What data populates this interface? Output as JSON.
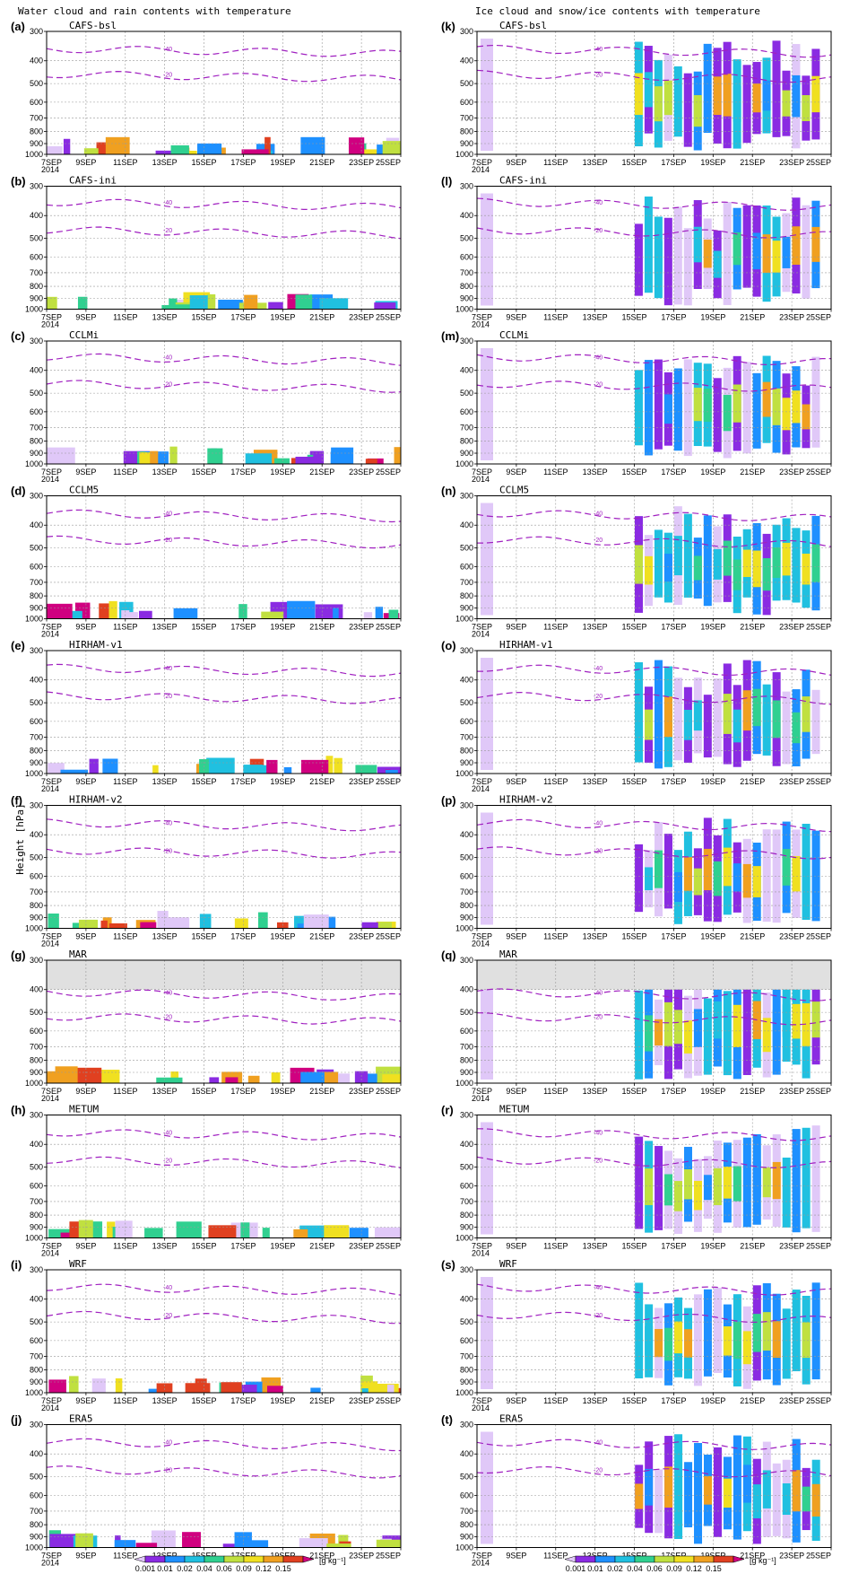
{
  "figure": {
    "left_title": "Water cloud and rain contents with temperature",
    "right_title": "Ice cloud and snow/ice contents with temperature",
    "ylabel": "Height [hPa]",
    "colorbar_unit": "[g kg⁻¹]"
  },
  "chart_data": {
    "type": "heatmap",
    "x_ticks": [
      "7SEP\n2014",
      "9SEP",
      "11SEP",
      "13SEP",
      "15SEP",
      "17SEP",
      "19SEP",
      "21SEP",
      "23SEP",
      "25SEP"
    ],
    "x_days": [
      7,
      9,
      11,
      13,
      15,
      17,
      19,
      21,
      23,
      25
    ],
    "xlim": [
      7,
      25
    ],
    "y_ticks": [
      300,
      400,
      500,
      600,
      700,
      800,
      900,
      1000
    ],
    "ylim": [
      300,
      1000
    ],
    "y_scale": "log-pressure",
    "grid": true,
    "colorbar": {
      "levels": [
        "0.001",
        "0.01",
        "0.02",
        "0.04",
        "0.06",
        "0.09",
        "0.12",
        "0.15"
      ],
      "colors": [
        "#e0c8f8",
        "#8a2be2",
        "#1e90ff",
        "#20c0e0",
        "#30d090",
        "#c0e040",
        "#f0e020",
        "#f0a020",
        "#e04020",
        "#d00080"
      ]
    },
    "isotherm_color": "#a020c0",
    "panels": [
      {
        "letter": "(a)",
        "model": "CAFS-bsl",
        "column": "water",
        "isotherms": [
          [
            "-40",
            355
          ],
          [
            "-20",
            455
          ]
        ]
      },
      {
        "letter": "(b)",
        "model": "CAFS-ini",
        "column": "water",
        "isotherms": [
          [
            "-40",
            350
          ],
          [
            "-20",
            460
          ]
        ]
      },
      {
        "letter": "(c)",
        "model": "CCLMi",
        "column": "water",
        "isotherms": [
          [
            "-40",
            350
          ],
          [
            "-20",
            455
          ]
        ]
      },
      {
        "letter": "(d)",
        "model": "CCLM5",
        "column": "water",
        "isotherms": [
          [
            "-40",
            355
          ],
          [
            "-20",
            460
          ]
        ]
      },
      {
        "letter": "(e)",
        "model": "HIRHAM-v1",
        "column": "water",
        "isotherms": [
          [
            "-40",
            355
          ],
          [
            "-20",
            465
          ]
        ]
      },
      {
        "letter": "(f)",
        "model": "HIRHAM-v2",
        "column": "water",
        "isotherms": [
          [
            "-40",
            355
          ],
          [
            "-20",
            465
          ]
        ]
      },
      {
        "letter": "(g)",
        "model": "MAR",
        "column": "water",
        "isotherms": [
          [
            "-40",
            410
          ],
          [
            "-20",
            520
          ]
        ],
        "masked_above": 400
      },
      {
        "letter": "(h)",
        "model": "METUM",
        "column": "water",
        "isotherms": [
          [
            "-40",
            355
          ],
          [
            "-20",
            465
          ]
        ]
      },
      {
        "letter": "(i)",
        "model": "WRF",
        "column": "water",
        "isotherms": [
          [
            "-40",
            355
          ],
          [
            "-20",
            465
          ]
        ]
      },
      {
        "letter": "(j)",
        "model": "ERA5",
        "column": "water",
        "isotherms": [
          [
            "-40",
            355
          ],
          [
            "-20",
            465
          ]
        ]
      },
      {
        "letter": "(k)",
        "model": "CAFS-bsl",
        "column": "ice",
        "isotherms": [
          [
            "-40",
            355
          ],
          [
            "-20",
            455
          ]
        ]
      },
      {
        "letter": "(l)",
        "model": "CAFS-ini",
        "column": "ice",
        "isotherms": [
          [
            "-40",
            350
          ],
          [
            "-20",
            460
          ]
        ]
      },
      {
        "letter": "(m)",
        "model": "CCLMi",
        "column": "ice",
        "isotherms": [
          [
            "-40",
            350
          ],
          [
            "-20",
            455
          ]
        ]
      },
      {
        "letter": "(n)",
        "model": "CCLM5",
        "column": "ice",
        "isotherms": [
          [
            "-40",
            355
          ],
          [
            "-20",
            460
          ]
        ]
      },
      {
        "letter": "(o)",
        "model": "HIRHAM-v1",
        "column": "ice",
        "isotherms": [
          [
            "-40",
            355
          ],
          [
            "-20",
            465
          ]
        ]
      },
      {
        "letter": "(p)",
        "model": "HIRHAM-v2",
        "column": "ice",
        "isotherms": [
          [
            "-40",
            355
          ],
          [
            "-20",
            465
          ]
        ]
      },
      {
        "letter": "(q)",
        "model": "MAR",
        "column": "ice",
        "isotherms": [
          [
            "-40",
            410
          ],
          [
            "-20",
            520
          ]
        ],
        "masked_above": 400
      },
      {
        "letter": "(r)",
        "model": "METUM",
        "column": "ice",
        "isotherms": [
          [
            "-40",
            355
          ],
          [
            "-20",
            465
          ]
        ]
      },
      {
        "letter": "(s)",
        "model": "WRF",
        "column": "ice",
        "isotherms": [
          [
            "-40",
            355
          ],
          [
            "-20",
            465
          ]
        ]
      },
      {
        "letter": "(t)",
        "model": "ERA5",
        "column": "ice",
        "isotherms": [
          [
            "-40",
            355
          ],
          [
            "-20",
            465
          ]
        ]
      }
    ]
  }
}
